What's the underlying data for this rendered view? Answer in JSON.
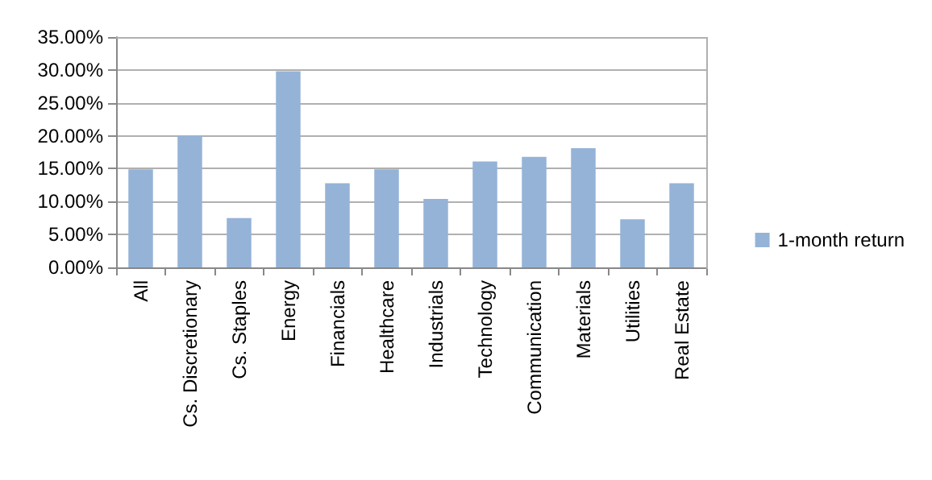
{
  "chart_data": {
    "type": "bar",
    "categories": [
      "All",
      "Cs. Discretionary",
      "Cs. Staples",
      "Energy",
      "Financials",
      "Healthcare",
      "Industrials",
      "Technology",
      "Communication",
      "Materials",
      "Utilities",
      "Real Estate"
    ],
    "series": [
      {
        "name": "1-month return",
        "color": "#95b3d7",
        "values": [
          14.9,
          20.0,
          7.5,
          29.8,
          12.8,
          14.9,
          10.4,
          16.1,
          16.8,
          18.1,
          7.3,
          12.8
        ]
      }
    ],
    "ylim": [
      0,
      35
    ],
    "yticks": [
      {
        "value": 0,
        "label": "0.00%"
      },
      {
        "value": 5,
        "label": "5.00%"
      },
      {
        "value": 10,
        "label": "10.00%"
      },
      {
        "value": 15,
        "label": "15.00%"
      },
      {
        "value": 20,
        "label": "20.00%"
      },
      {
        "value": 25,
        "label": "25.00%"
      },
      {
        "value": 30,
        "label": "30.00%"
      },
      {
        "value": 35,
        "label": "35.00%"
      }
    ],
    "grid": "y",
    "legend": "right"
  }
}
